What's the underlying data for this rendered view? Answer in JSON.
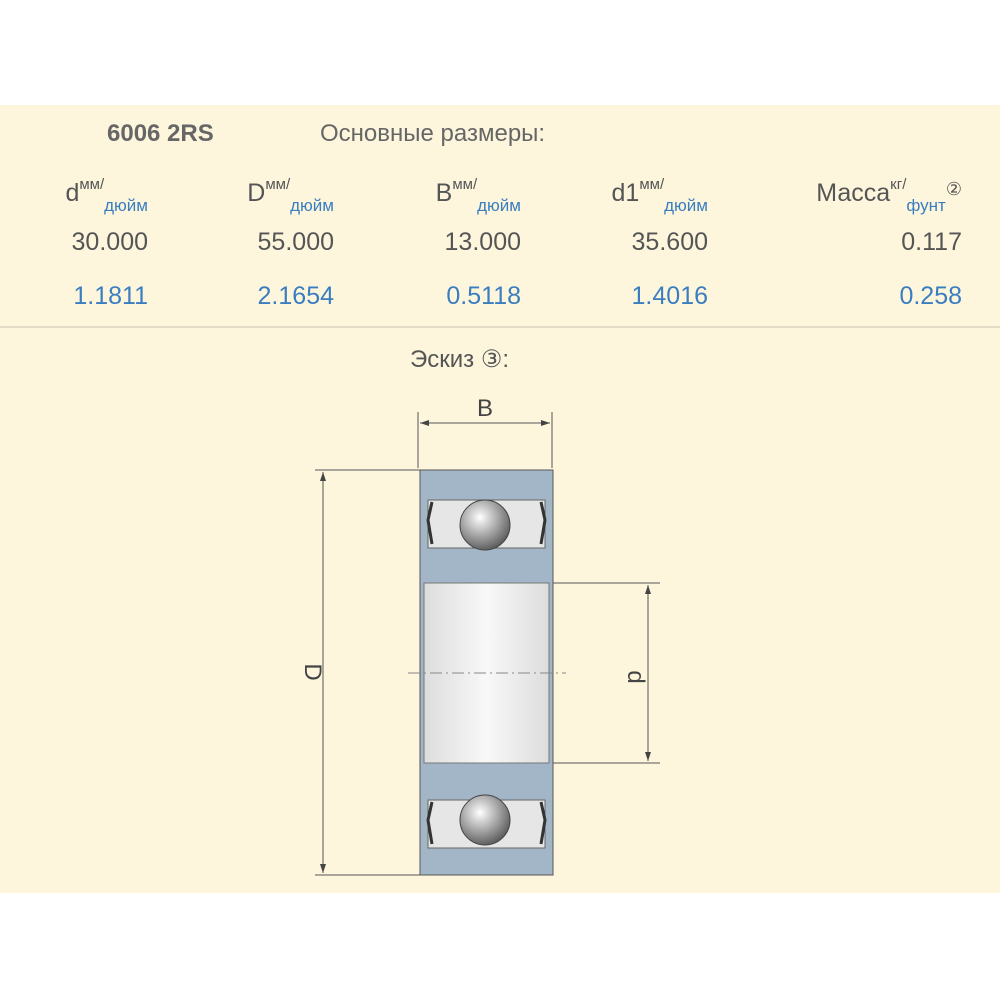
{
  "header": {
    "model": "6006 2RS",
    "subtitle": "Основные размеры:"
  },
  "table": {
    "columns": [
      {
        "symbol": "d",
        "unit_metric": "мм/",
        "unit_imperial": "дюйм"
      },
      {
        "symbol": "D",
        "unit_metric": "мм/",
        "unit_imperial": "дюйм"
      },
      {
        "symbol": "B",
        "unit_metric": "мм/",
        "unit_imperial": "дюйм"
      },
      {
        "symbol": "d1",
        "unit_metric": "мм/",
        "unit_imperial": "дюйм"
      },
      {
        "symbol": "Масса",
        "unit_metric": "кг/",
        "unit_imperial": "фунт",
        "note": "②"
      }
    ],
    "rows": [
      [
        "30.000",
        "55.000",
        "13.000",
        "35.600",
        "0.117"
      ],
      [
        "1.1811",
        "2.1654",
        "0.5118",
        "1.4016",
        "0.258"
      ]
    ]
  },
  "sketch": {
    "title": "Эскиз ③:",
    "labels": {
      "width": "B",
      "outer": "D",
      "bore": "d"
    }
  }
}
